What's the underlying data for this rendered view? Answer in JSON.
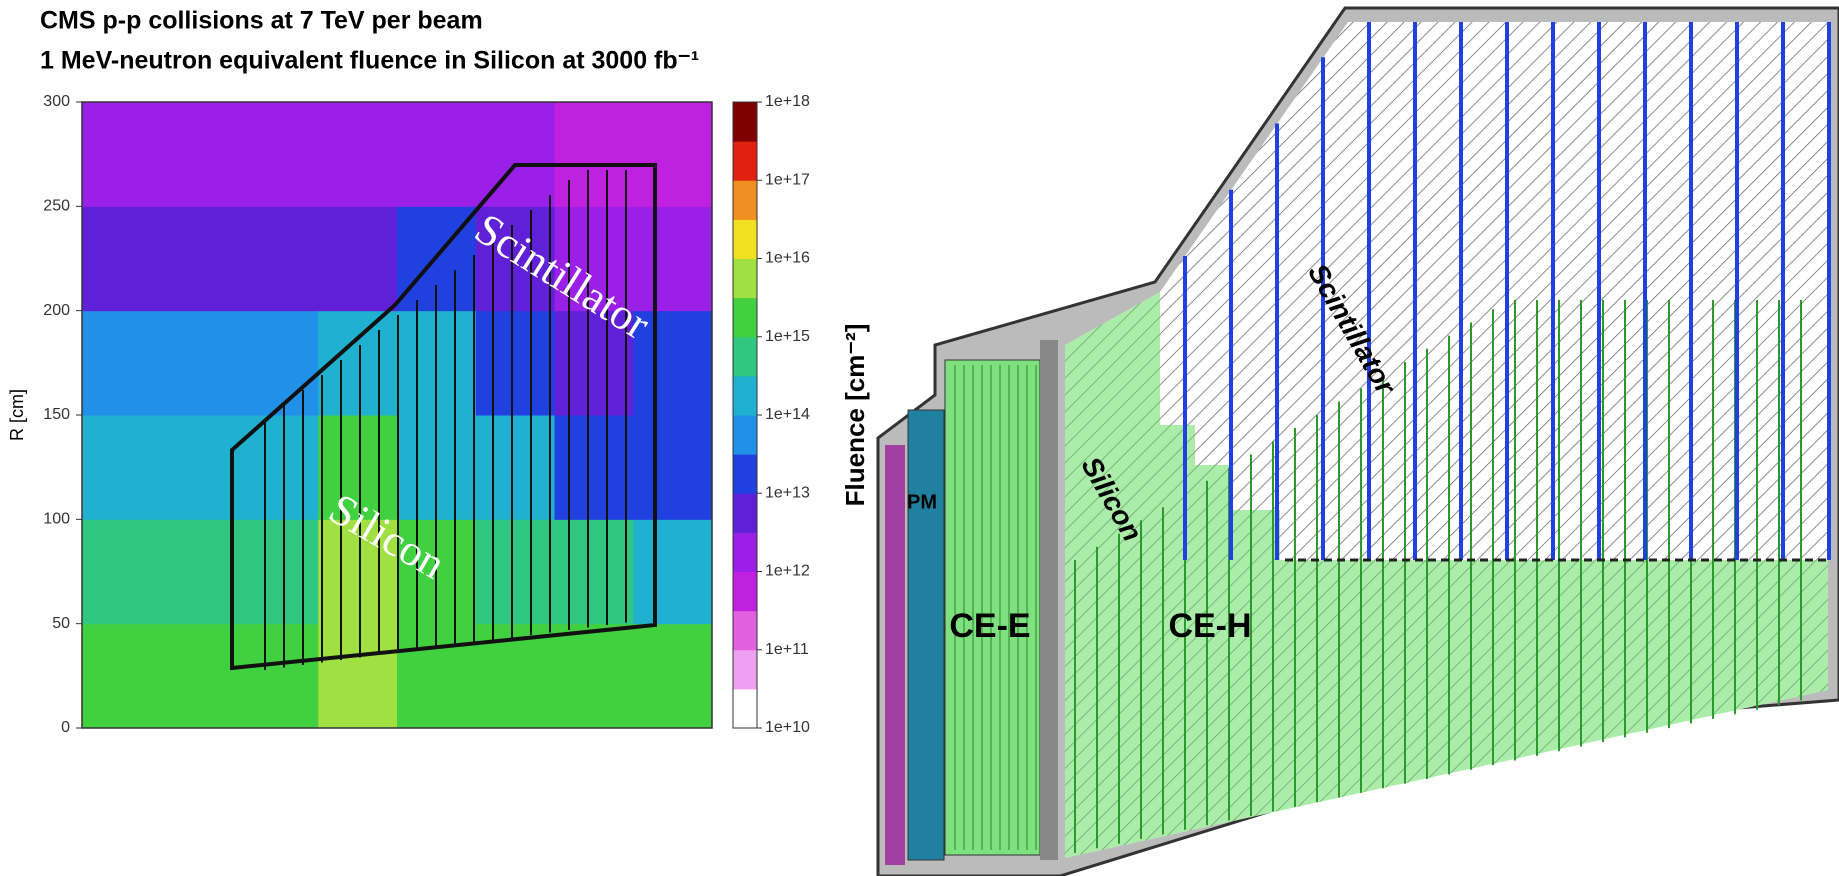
{
  "chart_data": {
    "type": "heatmap",
    "title": "CMS p-p collisions at 7 TeV per beam",
    "subtitle": "1 MeV-neutron equivalent fluence in Silicon at 3000 fb⁻¹",
    "y_label": "R [cm]",
    "colorbar_label": "Fluence [cm⁻²]",
    "ylim": [
      0,
      300
    ],
    "yticks": [
      0,
      50,
      100,
      150,
      200,
      250,
      300
    ],
    "values": [
      [
        3000000000000000.0,
        3000000000000000.0,
        2000000000000000.0,
        5000000000000000.0,
        2000000000000000.0,
        1000000000000000.0,
        1000000000000000.0,
        1000000000000000.0
      ],
      [
        500000000000000.0,
        500000000000000.0,
        500000000000000.0,
        5000000000000000.0,
        1000000000000000.0,
        500000000000000.0,
        500000000000000.0,
        300000000000000.0
      ],
      [
        300000000000000.0,
        300000000000000.0,
        200000000000000.0,
        1000000000000000.0,
        300000000000000.0,
        100000000000000.0,
        30000000000000.0,
        20000000000000.0
      ],
      [
        50000000000000.0,
        50000000000000.0,
        50000000000000.0,
        200000000000000.0,
        100000000000000.0,
        20000000000000.0,
        5000000000000.0,
        20000000000000.0
      ],
      [
        5000000000000.0,
        5000000000000.0,
        5000000000000.0,
        5000000000000.0,
        20000000000000.0,
        5000000000000.0,
        3000000000000.0,
        3000000000000.0
      ],
      [
        1000000000000.0,
        1000000000000.0,
        1000000000000.0,
        1000000000000.0,
        3000000000000.0,
        1000000000000.0,
        500000000000.0,
        500000000000.0
      ]
    ],
    "log_colorscale": true,
    "colorbar_lim": [
      10000000000.0,
      1e+18
    ],
    "colorbar_ticks": [
      {
        "value": 10000000000.0,
        "label": "1e+10"
      },
      {
        "value": 100000000000.0,
        "label": "1e+11"
      },
      {
        "value": 1000000000000.0,
        "label": "1e+12"
      },
      {
        "value": 10000000000000.0,
        "label": "1e+13"
      },
      {
        "value": 100000000000000.0,
        "label": "1e+14"
      },
      {
        "value": 1000000000000000.0,
        "label": "1e+15"
      },
      {
        "value": 1e+16,
        "label": "1e+16"
      },
      {
        "value": 1e+17,
        "label": "1e+17"
      },
      {
        "value": 1e+18,
        "label": "1e+18"
      }
    ],
    "colors": [
      "#ffffff",
      "#f0a0f0",
      "#e060e0",
      "#c020e0",
      "#9a20e8",
      "#6020d8",
      "#2040e0",
      "#2090e8",
      "#20b0d0",
      "#30c880",
      "#40d040",
      "#a0e040",
      "#f0e020",
      "#f09020",
      "#e02010",
      "#800000"
    ],
    "annotations": [
      "Scintillator",
      "Silicon"
    ]
  },
  "diagram": {
    "labels": {
      "pm": "PM",
      "ce_e": "CE-E",
      "ce_h": "CE-H",
      "silicon": "Silicon",
      "scintillator": "Scintillator"
    }
  }
}
